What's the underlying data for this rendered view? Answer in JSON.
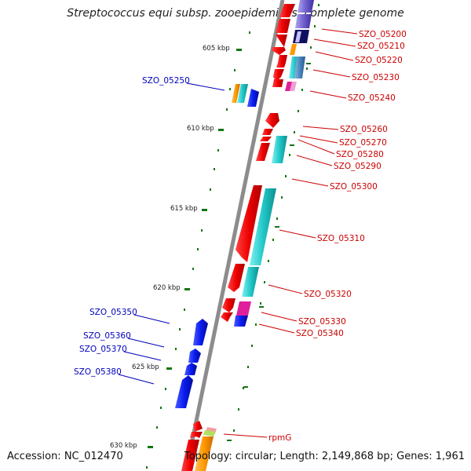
{
  "title": "Streptococcus equi subsp. zooepidemicus, complete genome",
  "accession_text": "Accession: NC_012470",
  "topology_text": "Topology: circular; Length: 2,149,868 bp; Genes: 1,961",
  "ticks": [
    "605 kbp",
    "610 kbp",
    "615 kbp",
    "620 kbp",
    "625 kbp",
    "630 kbp"
  ],
  "labels_right": [
    "SZO_05200",
    "SZO_05210",
    "SZO_05220",
    "SZO_05230",
    "SZO_05240",
    "SZO_05260",
    "SZO_05270",
    "SZO_05280",
    "SZO_05290",
    "SZO_05300",
    "SZO_05310",
    "SZO_05320",
    "SZO_05330",
    "SZO_05340",
    "rpmG"
  ],
  "labels_left": [
    "SZO_05250",
    "SZO_05350",
    "SZO_05360",
    "SZO_05370",
    "SZO_05380"
  ],
  "colors": {
    "backbone": "#8c8c8c",
    "gene_red": "#ee0000",
    "gene_cyan": "#22c8c8",
    "gene_blue": "#0a1cf0",
    "gene_orange": "#ff9900",
    "gene_magenta": "#e0209a",
    "gene_purple": "#7060d0",
    "tick_green": "#117711",
    "label_red": "#cc0000",
    "label_blue": "#0000bb"
  }
}
